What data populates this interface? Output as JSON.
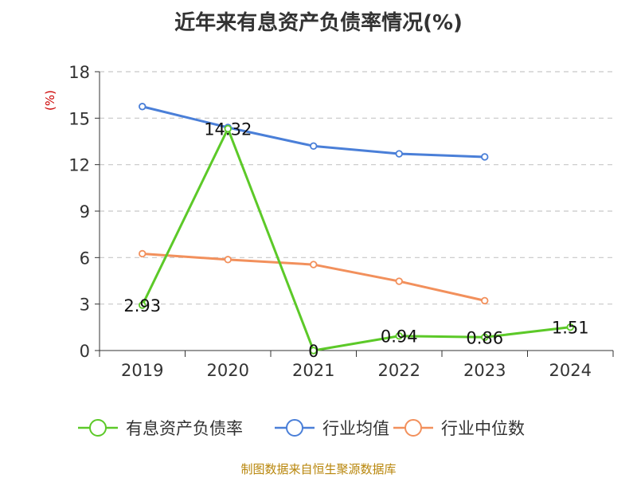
{
  "chart_data": {
    "type": "line",
    "title": "近年来有息资产负债率情况(%)",
    "ylabel": "(%)",
    "categories": [
      "2019",
      "2020",
      "2021",
      "2022",
      "2023",
      "2024"
    ],
    "ylim": [
      0,
      18
    ],
    "yticks": [
      0,
      3,
      6,
      9,
      12,
      15,
      18
    ],
    "grid": true,
    "legend_position": "bottom",
    "series": [
      {
        "name": "有息资产负债率",
        "color": "#5cc928",
        "values": [
          2.93,
          14.32,
          0,
          0.94,
          0.86,
          1.51
        ],
        "labels": [
          "2.93",
          "14.32",
          "0",
          "0.94",
          "0.86",
          "1.51"
        ]
      },
      {
        "name": "行业均值",
        "color": "#4a7fd8",
        "values": [
          15.75,
          14.4,
          13.2,
          12.7,
          12.5,
          null
        ]
      },
      {
        "name": "行业中位数",
        "color": "#f2905c",
        "values": [
          6.25,
          5.87,
          5.55,
          4.47,
          3.22,
          null
        ]
      }
    ]
  },
  "source": "制图数据来自恒生聚源数据库"
}
